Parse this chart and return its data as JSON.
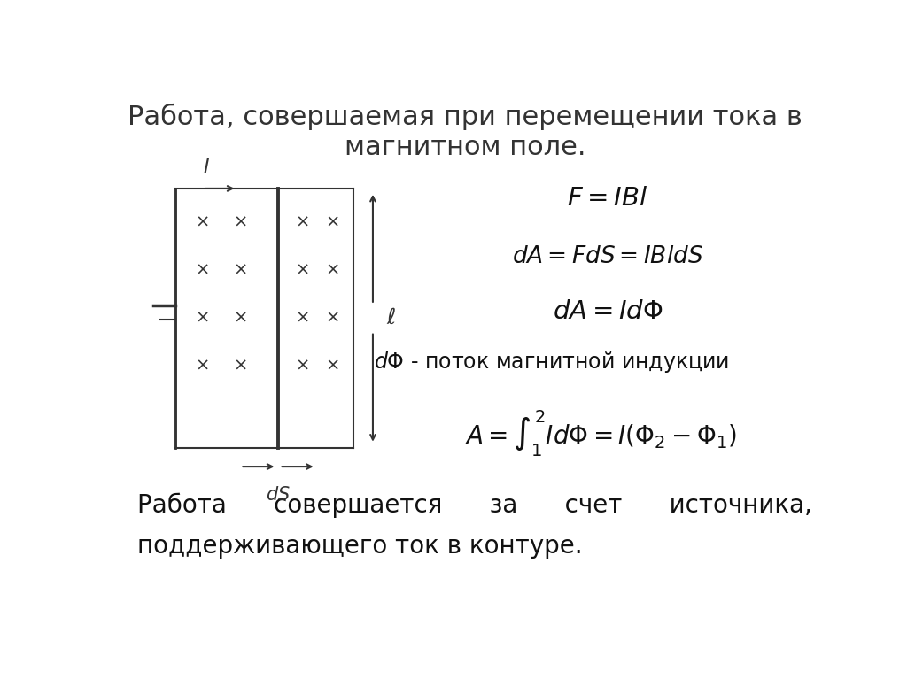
{
  "title": "Работа, совершаемая при перемещении тока в\nмагнитном поле.",
  "title_fontsize": 22,
  "title_color": "#333333",
  "formula1": "$F = IBl$",
  "formula2": "$dA = FdS = IBldS$",
  "formula3": "$dA = Id\\Phi$",
  "formula4_text": "$d\\Phi$ - поток магнитной индукции",
  "formula5": "$A = \\int_1^2 Id\\Phi = I(\\Phi_2 - \\Phi_1)$",
  "bottom_text1": "Работа      совершается      за      счет      источника,",
  "bottom_text2": "поддерживающего ток в контуре.",
  "formula_color": "#111111",
  "formula_fontsize": 18,
  "text_color": "#111111",
  "bg_color": "#ffffff",
  "diagram_color": "#333333"
}
